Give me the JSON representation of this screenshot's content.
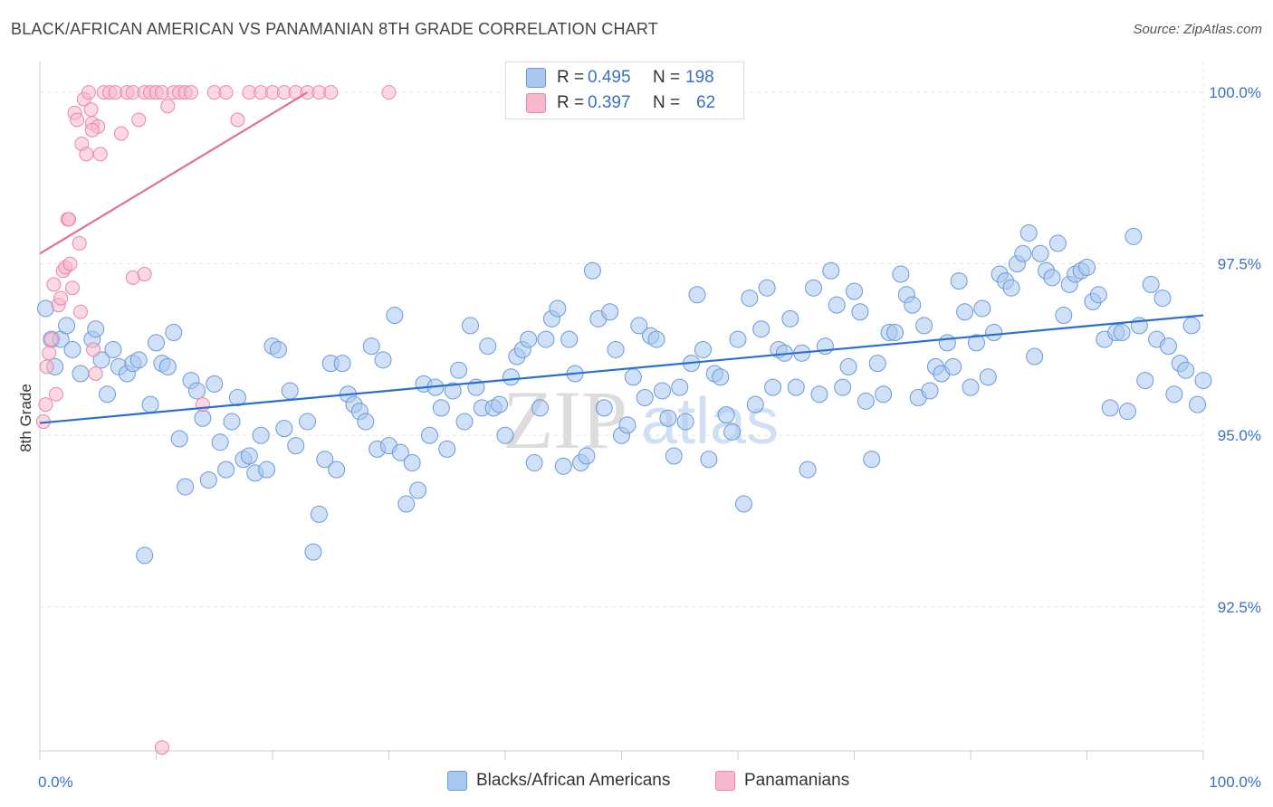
{
  "title": "BLACK/AFRICAN AMERICAN VS PANAMANIAN 8TH GRADE CORRELATION CHART",
  "source": "Source: ZipAtlas.com",
  "watermark": {
    "zip": "ZIP",
    "atlas": "atlas"
  },
  "colors": {
    "blue_fill": "#a9c8f0",
    "blue_stroke": "#6a9ad8",
    "blue_line": "#2a6fd0",
    "pink_fill": "#f7b8cb",
    "pink_stroke": "#eb86a6",
    "pink_line": "#e0709a",
    "tick_text": "#3a6fc4",
    "grid": "#e4e4e4"
  },
  "legend": [
    {
      "r_label": "R =",
      "r_value": "0.495",
      "n_label": "N =",
      "n_value": "198",
      "color": "#a9c8f0"
    },
    {
      "r_label": "R =",
      "r_value": "0.397",
      "n_label": "N =",
      "n_value": "62",
      "color": "#f7b8cb"
    }
  ],
  "chart_data": {
    "type": "scatter",
    "title": "BLACK/AFRICAN AMERICAN VS PANAMANIAN 8TH GRADE CORRELATION CHART",
    "xlabel": "",
    "ylabel": "8th Grade",
    "xlim": [
      0,
      100
    ],
    "ylim": [
      90.4,
      100.45
    ],
    "x_tick_labels": [
      "0.0%",
      "100.0%"
    ],
    "y_ticks": [
      92.5,
      95.0,
      97.5,
      100.0
    ],
    "y_tick_labels": [
      "92.5%",
      "95.0%",
      "97.5%",
      "100.0%"
    ],
    "grid": true,
    "legend_position": "top-center",
    "series": [
      {
        "name": "Blacks/African Americans",
        "color": "#a9c8f0",
        "trend": {
          "x0": 0,
          "y0": 95.18,
          "x1": 100,
          "y1": 96.75
        },
        "points": [
          [
            0.5,
            96.85
          ],
          [
            1.0,
            96.4
          ],
          [
            1.3,
            96.0
          ],
          [
            1.8,
            96.4
          ],
          [
            2.3,
            96.6
          ],
          [
            2.8,
            96.25
          ],
          [
            3.5,
            95.9
          ],
          [
            4.5,
            96.4
          ],
          [
            4.8,
            96.55
          ],
          [
            5.3,
            96.1
          ],
          [
            5.8,
            95.6
          ],
          [
            6.3,
            96.25
          ],
          [
            6.8,
            96.0
          ],
          [
            7.5,
            95.9
          ],
          [
            8.0,
            96.05
          ],
          [
            8.5,
            96.1
          ],
          [
            9.0,
            93.25
          ],
          [
            9.5,
            95.45
          ],
          [
            10.0,
            96.35
          ],
          [
            10.5,
            96.05
          ],
          [
            11.0,
            96.0
          ],
          [
            11.5,
            96.5
          ],
          [
            12.0,
            94.95
          ],
          [
            12.5,
            94.25
          ],
          [
            13.0,
            95.8
          ],
          [
            13.5,
            95.65
          ],
          [
            14.0,
            95.25
          ],
          [
            14.5,
            94.35
          ],
          [
            15.0,
            95.75
          ],
          [
            15.5,
            94.9
          ],
          [
            16.0,
            94.5
          ],
          [
            16.5,
            95.2
          ],
          [
            17.0,
            95.55
          ],
          [
            17.5,
            94.65
          ],
          [
            18.0,
            94.7
          ],
          [
            18.5,
            94.45
          ],
          [
            19.0,
            95.0
          ],
          [
            19.5,
            94.5
          ],
          [
            20.0,
            96.3
          ],
          [
            20.5,
            96.25
          ],
          [
            21.0,
            95.1
          ],
          [
            21.5,
            95.65
          ],
          [
            22.0,
            94.85
          ],
          [
            23.0,
            95.2
          ],
          [
            23.5,
            93.3
          ],
          [
            24.0,
            93.85
          ],
          [
            24.5,
            94.65
          ],
          [
            25.0,
            96.05
          ],
          [
            25.5,
            94.5
          ],
          [
            26.0,
            96.05
          ],
          [
            26.5,
            95.6
          ],
          [
            27.0,
            95.45
          ],
          [
            27.5,
            95.35
          ],
          [
            28.0,
            95.2
          ],
          [
            28.5,
            96.3
          ],
          [
            29.0,
            94.8
          ],
          [
            29.5,
            96.1
          ],
          [
            30.0,
            94.85
          ],
          [
            30.5,
            96.75
          ],
          [
            31.0,
            94.75
          ],
          [
            31.5,
            94.0
          ],
          [
            32.0,
            94.6
          ],
          [
            32.5,
            94.2
          ],
          [
            33.0,
            95.75
          ],
          [
            33.5,
            95.0
          ],
          [
            34.0,
            95.7
          ],
          [
            34.5,
            95.4
          ],
          [
            35.0,
            94.8
          ],
          [
            35.5,
            95.65
          ],
          [
            36.0,
            95.95
          ],
          [
            36.5,
            95.2
          ],
          [
            37.0,
            96.6
          ],
          [
            37.5,
            95.7
          ],
          [
            38.0,
            95.4
          ],
          [
            38.5,
            96.3
          ],
          [
            39.0,
            95.4
          ],
          [
            39.5,
            95.45
          ],
          [
            40.0,
            95.0
          ],
          [
            40.5,
            95.85
          ],
          [
            41.0,
            96.15
          ],
          [
            41.5,
            96.25
          ],
          [
            42.0,
            96.4
          ],
          [
            42.5,
            94.6
          ],
          [
            43.0,
            95.4
          ],
          [
            43.5,
            96.4
          ],
          [
            44.0,
            96.7
          ],
          [
            44.5,
            96.85
          ],
          [
            45.0,
            94.55
          ],
          [
            45.5,
            96.4
          ],
          [
            46.0,
            95.9
          ],
          [
            46.5,
            94.6
          ],
          [
            47.0,
            94.7
          ],
          [
            47.5,
            97.4
          ],
          [
            48.0,
            96.7
          ],
          [
            48.5,
            95.4
          ],
          [
            49.0,
            96.8
          ],
          [
            49.5,
            96.25
          ],
          [
            50.0,
            95.0
          ],
          [
            50.5,
            95.15
          ],
          [
            51.0,
            95.85
          ],
          [
            51.5,
            96.6
          ],
          [
            52.0,
            95.55
          ],
          [
            52.5,
            96.45
          ],
          [
            53.0,
            96.4
          ],
          [
            53.5,
            95.65
          ],
          [
            54.0,
            95.25
          ],
          [
            54.5,
            94.7
          ],
          [
            55.0,
            95.7
          ],
          [
            55.5,
            95.2
          ],
          [
            56.0,
            96.05
          ],
          [
            56.5,
            97.05
          ],
          [
            57.0,
            96.25
          ],
          [
            57.5,
            94.65
          ],
          [
            58.0,
            95.9
          ],
          [
            58.5,
            95.85
          ],
          [
            59.0,
            95.3
          ],
          [
            59.5,
            95.05
          ],
          [
            60.0,
            96.4
          ],
          [
            60.5,
            94.0
          ],
          [
            61.0,
            97.0
          ],
          [
            61.5,
            95.45
          ],
          [
            62.0,
            96.55
          ],
          [
            62.5,
            97.15
          ],
          [
            63.0,
            95.7
          ],
          [
            63.5,
            96.25
          ],
          [
            64.0,
            96.2
          ],
          [
            64.5,
            96.7
          ],
          [
            65.0,
            95.7
          ],
          [
            65.5,
            96.2
          ],
          [
            66.0,
            94.5
          ],
          [
            66.5,
            97.15
          ],
          [
            67.0,
            95.6
          ],
          [
            67.5,
            96.3
          ],
          [
            68.0,
            97.4
          ],
          [
            68.5,
            96.9
          ],
          [
            69.0,
            95.7
          ],
          [
            69.5,
            96.0
          ],
          [
            70.0,
            97.1
          ],
          [
            70.5,
            96.8
          ],
          [
            71.0,
            95.5
          ],
          [
            71.5,
            94.65
          ],
          [
            72.0,
            96.05
          ],
          [
            72.5,
            95.6
          ],
          [
            73.0,
            96.5
          ],
          [
            73.5,
            96.5
          ],
          [
            74.0,
            97.35
          ],
          [
            74.5,
            97.05
          ],
          [
            75.0,
            96.9
          ],
          [
            75.5,
            95.55
          ],
          [
            76.0,
            96.6
          ],
          [
            76.5,
            95.65
          ],
          [
            77.0,
            96.0
          ],
          [
            77.5,
            95.9
          ],
          [
            78.0,
            96.35
          ],
          [
            78.5,
            96.0
          ],
          [
            79.0,
            97.25
          ],
          [
            79.5,
            96.8
          ],
          [
            80.0,
            95.7
          ],
          [
            80.5,
            96.35
          ],
          [
            81.0,
            96.85
          ],
          [
            81.5,
            95.85
          ],
          [
            82.0,
            96.5
          ],
          [
            82.5,
            97.35
          ],
          [
            83.0,
            97.25
          ],
          [
            83.5,
            97.15
          ],
          [
            84.0,
            97.5
          ],
          [
            84.5,
            97.65
          ],
          [
            85.0,
            97.95
          ],
          [
            85.5,
            96.15
          ],
          [
            86.0,
            97.65
          ],
          [
            86.5,
            97.4
          ],
          [
            87.0,
            97.3
          ],
          [
            87.5,
            97.8
          ],
          [
            88.0,
            96.75
          ],
          [
            88.5,
            97.2
          ],
          [
            89.0,
            97.35
          ],
          [
            89.5,
            97.4
          ],
          [
            90.0,
            97.45
          ],
          [
            90.5,
            96.95
          ],
          [
            91.0,
            97.05
          ],
          [
            91.5,
            96.4
          ],
          [
            92.0,
            95.4
          ],
          [
            92.5,
            96.5
          ],
          [
            93.0,
            96.5
          ],
          [
            93.5,
            95.35
          ],
          [
            94.0,
            97.9
          ],
          [
            94.5,
            96.6
          ],
          [
            95.0,
            95.8
          ],
          [
            95.5,
            97.2
          ],
          [
            96.0,
            96.4
          ],
          [
            96.5,
            97.0
          ],
          [
            97.0,
            96.3
          ],
          [
            97.5,
            95.6
          ],
          [
            98.0,
            96.05
          ],
          [
            98.5,
            95.95
          ],
          [
            99.0,
            96.6
          ],
          [
            99.5,
            95.45
          ],
          [
            100.0,
            95.8
          ]
        ]
      },
      {
        "name": "Panamanians",
        "color": "#f7b8cb",
        "trend": {
          "x0": 0,
          "y0": 97.65,
          "x1": 23.0,
          "y1": 100.0
        },
        "points": [
          [
            0.3,
            95.2
          ],
          [
            0.5,
            95.45
          ],
          [
            0.6,
            96.0
          ],
          [
            0.8,
            96.2
          ],
          [
            1.0,
            96.4
          ],
          [
            1.2,
            97.2
          ],
          [
            1.4,
            95.6
          ],
          [
            1.6,
            96.9
          ],
          [
            1.8,
            97.0
          ],
          [
            2.0,
            97.4
          ],
          [
            2.2,
            97.45
          ],
          [
            2.4,
            98.15
          ],
          [
            2.5,
            98.15
          ],
          [
            2.6,
            97.5
          ],
          [
            2.8,
            97.15
          ],
          [
            3.0,
            99.7
          ],
          [
            3.2,
            99.6
          ],
          [
            3.4,
            97.8
          ],
          [
            3.5,
            96.8
          ],
          [
            3.6,
            99.25
          ],
          [
            3.8,
            99.9
          ],
          [
            4.0,
            99.1
          ],
          [
            4.2,
            100.0
          ],
          [
            4.4,
            99.75
          ],
          [
            4.5,
            99.55
          ],
          [
            4.6,
            96.25
          ],
          [
            4.8,
            95.9
          ],
          [
            5.0,
            99.5
          ],
          [
            5.2,
            99.1
          ],
          [
            5.5,
            100.0
          ],
          [
            6.0,
            100.0
          ],
          [
            6.5,
            100.0
          ],
          [
            7.0,
            99.4
          ],
          [
            7.5,
            100.0
          ],
          [
            8.0,
            100.0
          ],
          [
            8.5,
            99.6
          ],
          [
            9.0,
            100.0
          ],
          [
            9.5,
            100.0
          ],
          [
            10.0,
            100.0
          ],
          [
            10.5,
            100.0
          ],
          [
            11.0,
            99.8
          ],
          [
            11.5,
            100.0
          ],
          [
            12.0,
            100.0
          ],
          [
            12.5,
            100.0
          ],
          [
            13.0,
            100.0
          ],
          [
            14.0,
            95.45
          ],
          [
            15.0,
            100.0
          ],
          [
            16.0,
            100.0
          ],
          [
            17.0,
            99.6
          ],
          [
            18.0,
            100.0
          ],
          [
            19.0,
            100.0
          ],
          [
            20.0,
            100.0
          ],
          [
            21.0,
            100.0
          ],
          [
            22.0,
            100.0
          ],
          [
            23.0,
            100.0
          ],
          [
            24.0,
            100.0
          ],
          [
            25.0,
            100.0
          ],
          [
            30.0,
            100.0
          ],
          [
            8.0,
            97.3
          ],
          [
            9.0,
            97.35
          ],
          [
            4.5,
            99.45
          ],
          [
            10.5,
            90.45
          ]
        ]
      }
    ]
  },
  "bottom_legend": [
    "Blacks/African Americans",
    "Panamanians"
  ]
}
